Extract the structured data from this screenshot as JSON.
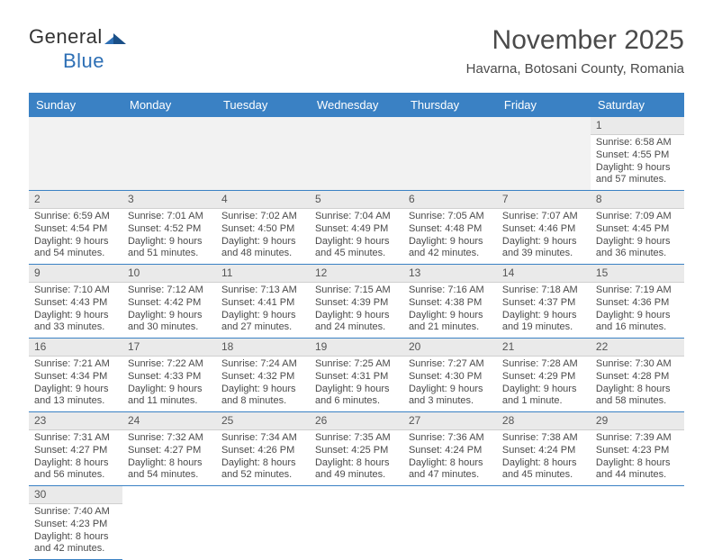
{
  "logo": {
    "word1": "General",
    "word2": "Blue"
  },
  "title": "November 2025",
  "subtitle": "Havarna, Botosani County, Romania",
  "colors": {
    "header_bg": "#3a81c4",
    "header_text": "#ffffff",
    "cell_border": "#3a81c4",
    "daynum_bg": "#eaeaea",
    "empty_bg": "#f2f2f2",
    "text": "#4a4a4a"
  },
  "daynames": [
    "Sunday",
    "Monday",
    "Tuesday",
    "Wednesday",
    "Thursday",
    "Friday",
    "Saturday"
  ],
  "weeks": [
    [
      null,
      null,
      null,
      null,
      null,
      null,
      {
        "n": "1",
        "sr": "6:58 AM",
        "ss": "4:55 PM",
        "dl": "9 hours and 57 minutes."
      }
    ],
    [
      {
        "n": "2",
        "sr": "6:59 AM",
        "ss": "4:54 PM",
        "dl": "9 hours and 54 minutes."
      },
      {
        "n": "3",
        "sr": "7:01 AM",
        "ss": "4:52 PM",
        "dl": "9 hours and 51 minutes."
      },
      {
        "n": "4",
        "sr": "7:02 AM",
        "ss": "4:50 PM",
        "dl": "9 hours and 48 minutes."
      },
      {
        "n": "5",
        "sr": "7:04 AM",
        "ss": "4:49 PM",
        "dl": "9 hours and 45 minutes."
      },
      {
        "n": "6",
        "sr": "7:05 AM",
        "ss": "4:48 PM",
        "dl": "9 hours and 42 minutes."
      },
      {
        "n": "7",
        "sr": "7:07 AM",
        "ss": "4:46 PM",
        "dl": "9 hours and 39 minutes."
      },
      {
        "n": "8",
        "sr": "7:09 AM",
        "ss": "4:45 PM",
        "dl": "9 hours and 36 minutes."
      }
    ],
    [
      {
        "n": "9",
        "sr": "7:10 AM",
        "ss": "4:43 PM",
        "dl": "9 hours and 33 minutes."
      },
      {
        "n": "10",
        "sr": "7:12 AM",
        "ss": "4:42 PM",
        "dl": "9 hours and 30 minutes."
      },
      {
        "n": "11",
        "sr": "7:13 AM",
        "ss": "4:41 PM",
        "dl": "9 hours and 27 minutes."
      },
      {
        "n": "12",
        "sr": "7:15 AM",
        "ss": "4:39 PM",
        "dl": "9 hours and 24 minutes."
      },
      {
        "n": "13",
        "sr": "7:16 AM",
        "ss": "4:38 PM",
        "dl": "9 hours and 21 minutes."
      },
      {
        "n": "14",
        "sr": "7:18 AM",
        "ss": "4:37 PM",
        "dl": "9 hours and 19 minutes."
      },
      {
        "n": "15",
        "sr": "7:19 AM",
        "ss": "4:36 PM",
        "dl": "9 hours and 16 minutes."
      }
    ],
    [
      {
        "n": "16",
        "sr": "7:21 AM",
        "ss": "4:34 PM",
        "dl": "9 hours and 13 minutes."
      },
      {
        "n": "17",
        "sr": "7:22 AM",
        "ss": "4:33 PM",
        "dl": "9 hours and 11 minutes."
      },
      {
        "n": "18",
        "sr": "7:24 AM",
        "ss": "4:32 PM",
        "dl": "9 hours and 8 minutes."
      },
      {
        "n": "19",
        "sr": "7:25 AM",
        "ss": "4:31 PM",
        "dl": "9 hours and 6 minutes."
      },
      {
        "n": "20",
        "sr": "7:27 AM",
        "ss": "4:30 PM",
        "dl": "9 hours and 3 minutes."
      },
      {
        "n": "21",
        "sr": "7:28 AM",
        "ss": "4:29 PM",
        "dl": "9 hours and 1 minute."
      },
      {
        "n": "22",
        "sr": "7:30 AM",
        "ss": "4:28 PM",
        "dl": "8 hours and 58 minutes."
      }
    ],
    [
      {
        "n": "23",
        "sr": "7:31 AM",
        "ss": "4:27 PM",
        "dl": "8 hours and 56 minutes."
      },
      {
        "n": "24",
        "sr": "7:32 AM",
        "ss": "4:27 PM",
        "dl": "8 hours and 54 minutes."
      },
      {
        "n": "25",
        "sr": "7:34 AM",
        "ss": "4:26 PM",
        "dl": "8 hours and 52 minutes."
      },
      {
        "n": "26",
        "sr": "7:35 AM",
        "ss": "4:25 PM",
        "dl": "8 hours and 49 minutes."
      },
      {
        "n": "27",
        "sr": "7:36 AM",
        "ss": "4:24 PM",
        "dl": "8 hours and 47 minutes."
      },
      {
        "n": "28",
        "sr": "7:38 AM",
        "ss": "4:24 PM",
        "dl": "8 hours and 45 minutes."
      },
      {
        "n": "29",
        "sr": "7:39 AM",
        "ss": "4:23 PM",
        "dl": "8 hours and 44 minutes."
      }
    ],
    [
      {
        "n": "30",
        "sr": "7:40 AM",
        "ss": "4:23 PM",
        "dl": "8 hours and 42 minutes."
      },
      null,
      null,
      null,
      null,
      null,
      null
    ]
  ],
  "labels": {
    "sunrise": "Sunrise: ",
    "sunset": "Sunset: ",
    "daylight": "Daylight: "
  }
}
